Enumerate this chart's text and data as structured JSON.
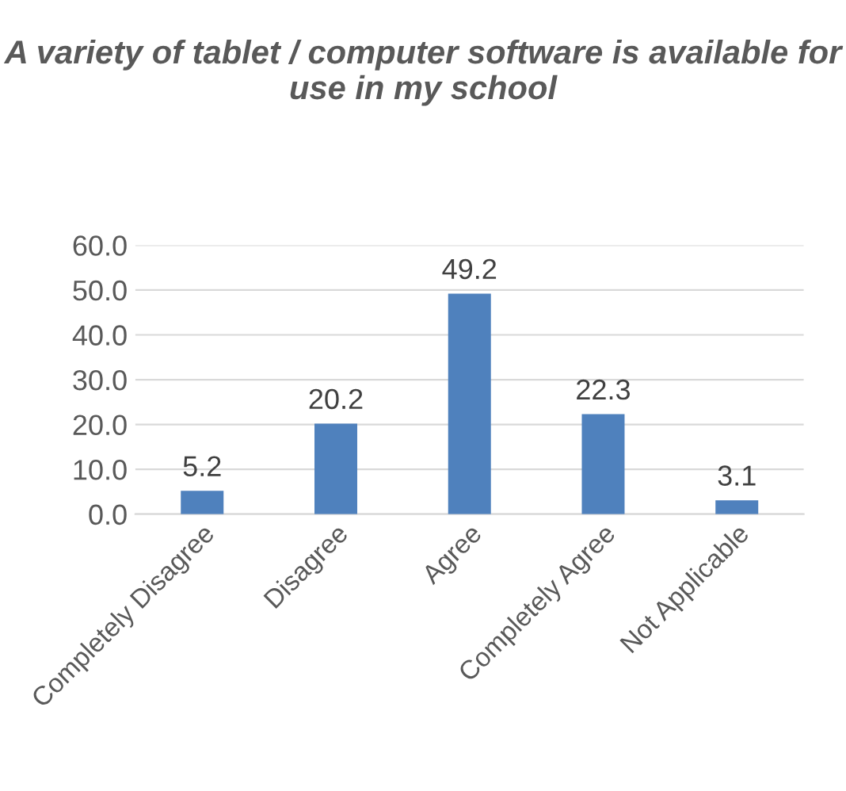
{
  "chart_data": {
    "type": "bar",
    "title": "A variety of tablet / computer software is available for use in my school",
    "categories": [
      "Completely Disagree",
      "Disagree",
      "Agree",
      "Completely Agree",
      "Not Applicable"
    ],
    "values": [
      5.2,
      20.2,
      49.2,
      22.3,
      3.1
    ],
    "color": "#4f81bd",
    "ylim": [
      0,
      60
    ],
    "yticks": [
      {
        "value": 0,
        "label": "0.0"
      },
      {
        "value": 10,
        "label": "10.0"
      },
      {
        "value": 20,
        "label": "20.0"
      },
      {
        "value": 30,
        "label": "30.0"
      },
      {
        "value": 40,
        "label": "40.0"
      },
      {
        "value": 50,
        "label": "50.0"
      },
      {
        "value": 60,
        "label": "60.0"
      }
    ],
    "grid": "y",
    "data_labels": true
  }
}
